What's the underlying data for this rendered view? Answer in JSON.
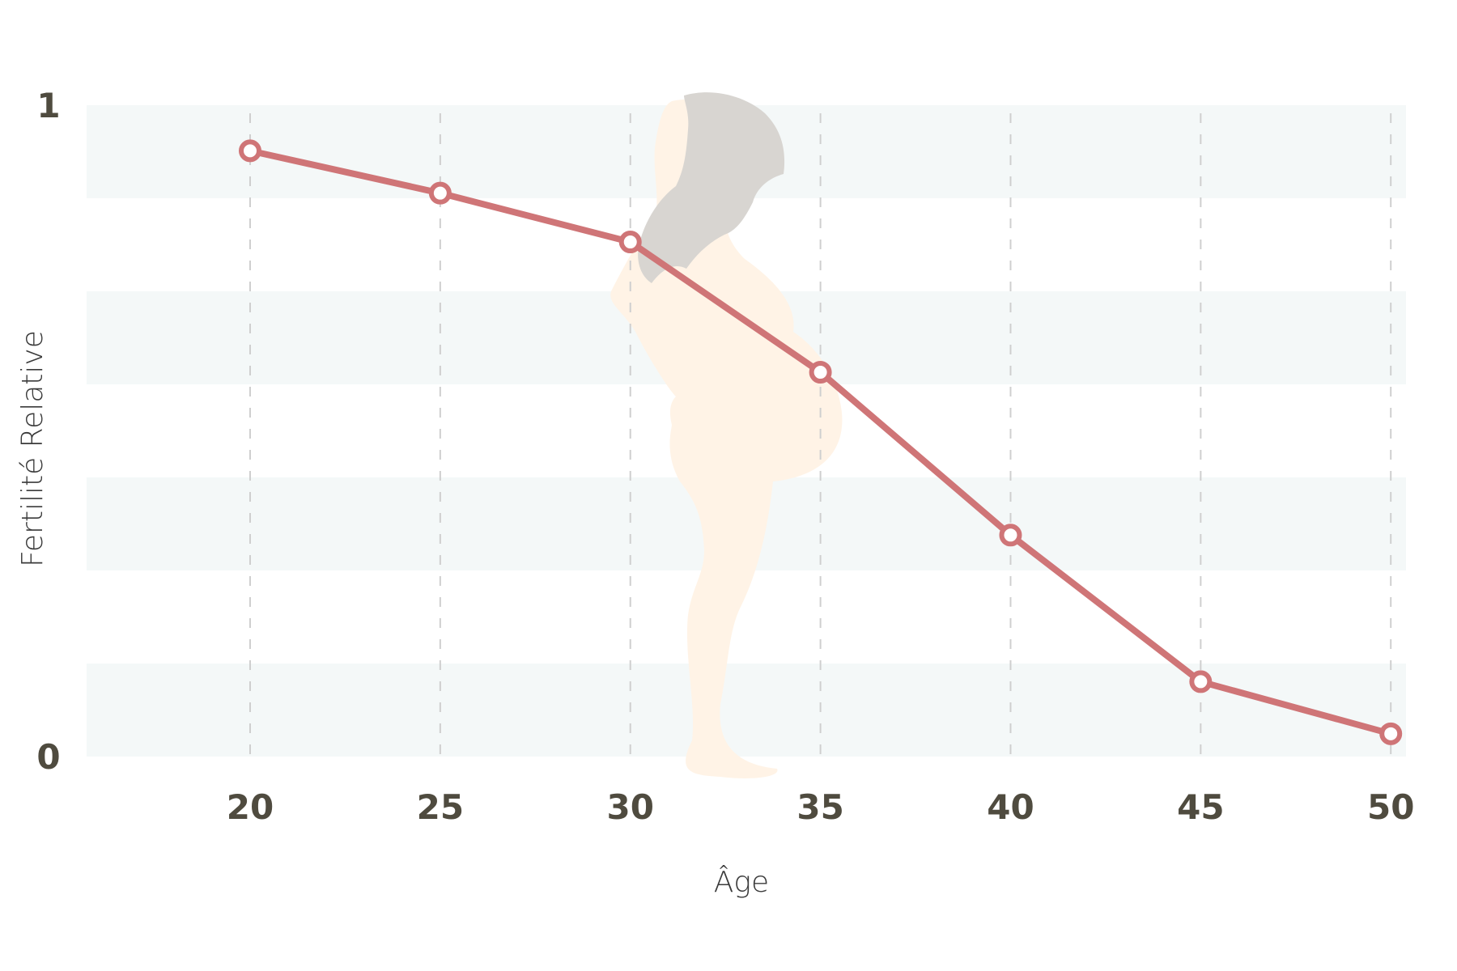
{
  "chart_data": {
    "type": "line",
    "xlabel": "Âge",
    "ylabel": "Fertilité Relative",
    "x": [
      20,
      25,
      30,
      35,
      40,
      45,
      50
    ],
    "series": [
      {
        "values": [
          0.93,
          0.865,
          0.79,
          0.59,
          0.34,
          0.115,
          0.035
        ]
      }
    ],
    "xlim": [
      15.7,
      50.4
    ],
    "ylim": [
      0,
      1
    ],
    "x_ticks": [
      "20",
      "25",
      "30",
      "35",
      "40",
      "45",
      "50"
    ],
    "y_ticks": [
      "0",
      "1"
    ],
    "grid": {
      "vertical_dashed": true,
      "horizontal_bands": true
    },
    "colors": {
      "series_line": "#cf7577",
      "point_fill": "#ffffff",
      "band": "#f4f8f8",
      "tick_text": "#4f4b3f",
      "grid": "#cfcfcf"
    },
    "background_image": "pregnant-woman-silhouette-icon"
  }
}
